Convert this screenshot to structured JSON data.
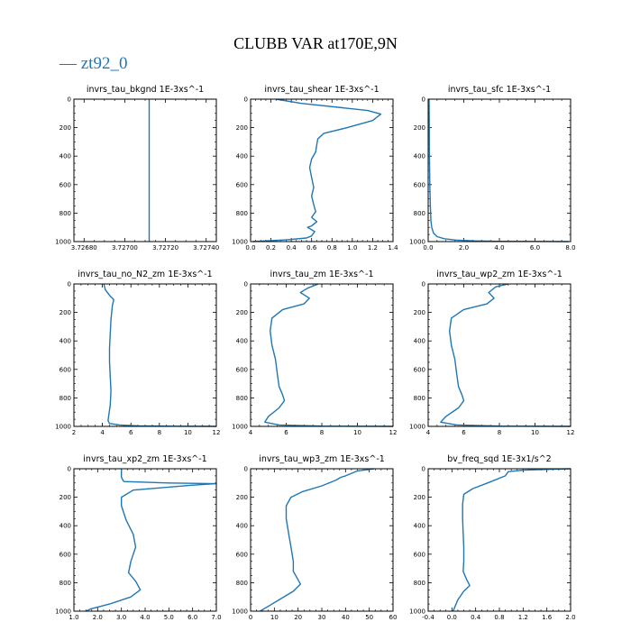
{
  "figure": {
    "title": "CLUBB VAR at170E,9N",
    "legend_label": "zt92_0",
    "line_color": "#1f77b4"
  },
  "chart_data": [
    {
      "type": "line",
      "title": "invrs_tau_bkgnd   1E-3xs^-1",
      "xlim": [
        3.72675,
        3.72745
      ],
      "ylim": [
        0,
        1000
      ],
      "y_inverted": true,
      "xticks": [
        3.7268,
        3.727,
        3.7272,
        3.7274
      ],
      "xtick_labels": [
        "3.72680",
        "3.72700",
        "3.72720",
        "3.72740"
      ],
      "yticks": [
        0,
        200,
        400,
        600,
        800,
        1000
      ],
      "ytick_labels": [
        "0",
        "200",
        "400",
        "600",
        "800",
        "1000"
      ],
      "series": [
        {
          "x": [
            3.72712,
            3.72712,
            3.72712,
            3.72712,
            3.72712,
            3.72712
          ],
          "y": [
            0,
            200,
            400,
            600,
            800,
            1000
          ]
        }
      ]
    },
    {
      "type": "line",
      "title": "invrs_tau_shear   1E-3xs^-1",
      "xlim": [
        0,
        1.4
      ],
      "ylim": [
        0,
        1000
      ],
      "y_inverted": true,
      "xticks": [
        0,
        0.2,
        0.4,
        0.6,
        0.8,
        1.0,
        1.2,
        1.4
      ],
      "xtick_labels": [
        "0.0",
        "0.2",
        "0.4",
        "0.6",
        "0.8",
        "1.0",
        "1.2",
        "1.4"
      ],
      "yticks": [
        0,
        200,
        400,
        600,
        800,
        1000
      ],
      "ytick_labels": [
        "0",
        "200",
        "400",
        "600",
        "800",
        "1000"
      ],
      "series": [
        {
          "x": [
            0.25,
            0.5,
            0.9,
            1.15,
            1.28,
            1.2,
            0.95,
            0.72,
            0.66,
            0.65,
            0.64,
            0.6,
            0.58,
            0.6,
            0.62,
            0.6,
            0.62,
            0.64,
            0.6,
            0.65,
            0.6,
            0.56,
            0.63,
            0.6,
            0.55,
            0.35,
            0.15,
            0.02
          ],
          "y": [
            0,
            30,
            60,
            80,
            105,
            150,
            200,
            240,
            280,
            320,
            370,
            420,
            480,
            550,
            620,
            680,
            740,
            790,
            830,
            860,
            890,
            900,
            930,
            960,
            975,
            988,
            995,
            1000
          ]
        }
      ]
    },
    {
      "type": "line",
      "title": "invrs_tau_sfc   1E-3xs^-1",
      "xlim": [
        0,
        8
      ],
      "ylim": [
        0,
        1000
      ],
      "y_inverted": true,
      "xticks": [
        0,
        2,
        4,
        6,
        8
      ],
      "xtick_labels": [
        "0.0",
        "2.0",
        "4.0",
        "6.0",
        "8.0"
      ],
      "yticks": [
        0,
        200,
        400,
        600,
        800,
        1000
      ],
      "ytick_labels": [
        "0",
        "200",
        "400",
        "600",
        "800",
        "1000"
      ],
      "series": [
        {
          "x": [
            0.05,
            0.06,
            0.07,
            0.09,
            0.12,
            0.15,
            0.2,
            0.3,
            0.5,
            0.9,
            1.6,
            2.6,
            4.0,
            6.0,
            7.9
          ],
          "y": [
            0,
            200,
            400,
            600,
            750,
            850,
            900,
            940,
            965,
            980,
            990,
            995,
            998,
            999,
            1000
          ]
        }
      ]
    },
    {
      "type": "line",
      "title": "invrs_tau_no_N2_zm   1E-3xs^-1",
      "xlim": [
        2,
        12
      ],
      "ylim": [
        0,
        1000
      ],
      "y_inverted": true,
      "xticks": [
        2,
        4,
        6,
        8,
        10,
        12
      ],
      "xtick_labels": [
        "2",
        "4",
        "6",
        "8",
        "10",
        "12"
      ],
      "yticks": [
        0,
        200,
        400,
        600,
        800,
        1000
      ],
      "ytick_labels": [
        "0",
        "200",
        "400",
        "600",
        "800",
        "1000"
      ],
      "series": [
        {
          "x": [
            4.1,
            4.2,
            4.5,
            4.8,
            4.7,
            4.6,
            4.55,
            4.5,
            4.5,
            4.55,
            4.6,
            4.55,
            4.45,
            4.4,
            4.5,
            5.2,
            6.5,
            9.0,
            12.0
          ],
          "y": [
            0,
            40,
            80,
            110,
            150,
            250,
            350,
            450,
            550,
            650,
            750,
            850,
            920,
            960,
            980,
            990,
            996,
            999,
            1000
          ]
        }
      ]
    },
    {
      "type": "line",
      "title": "invrs_tau_zm   1E-3xs^-1",
      "xlim": [
        4,
        12
      ],
      "ylim": [
        0,
        1000
      ],
      "y_inverted": true,
      "xticks": [
        4,
        6,
        8,
        10,
        12
      ],
      "xtick_labels": [
        "4",
        "6",
        "8",
        "10",
        "12"
      ],
      "yticks": [
        0,
        200,
        400,
        600,
        800,
        1000
      ],
      "ytick_labels": [
        "0",
        "200",
        "400",
        "600",
        "800",
        "1000"
      ],
      "series": [
        {
          "x": [
            7.8,
            7.2,
            6.8,
            7.3,
            7.0,
            5.8,
            5.2,
            5.1,
            5.2,
            5.4,
            5.5,
            5.6,
            5.8,
            5.9,
            5.6,
            5.0,
            4.8,
            5.6,
            8.0,
            12.0
          ],
          "y": [
            0,
            30,
            60,
            100,
            140,
            180,
            240,
            330,
            430,
            530,
            630,
            720,
            780,
            820,
            870,
            930,
            970,
            990,
            998,
            1000
          ]
        }
      ]
    },
    {
      "type": "line",
      "title": "invrs_tau_wp2_zm   1E-3xs^-1",
      "xlim": [
        4,
        12
      ],
      "ylim": [
        0,
        1000
      ],
      "y_inverted": true,
      "xticks": [
        4,
        6,
        8,
        10,
        12
      ],
      "xtick_labels": [
        "4",
        "6",
        "8",
        "10",
        "12"
      ],
      "yticks": [
        0,
        200,
        400,
        600,
        800,
        1000
      ],
      "ytick_labels": [
        "0",
        "200",
        "400",
        "600",
        "800",
        "1000"
      ],
      "series": [
        {
          "x": [
            8.5,
            7.8,
            7.4,
            7.7,
            7.3,
            6.0,
            5.3,
            5.2,
            5.3,
            5.5,
            5.6,
            5.7,
            5.9,
            6.0,
            5.7,
            5.0,
            4.7,
            5.6,
            8.0,
            12.0
          ],
          "y": [
            0,
            20,
            60,
            100,
            140,
            180,
            240,
            330,
            430,
            530,
            630,
            720,
            780,
            820,
            870,
            930,
            970,
            990,
            998,
            1000
          ]
        }
      ]
    },
    {
      "type": "line",
      "title": "invrs_tau_xp2_zm   1E-3xs^-1",
      "xlim": [
        1,
        7
      ],
      "ylim": [
        0,
        1000
      ],
      "y_inverted": true,
      "xticks": [
        1,
        2,
        3,
        4,
        5,
        6,
        7
      ],
      "xtick_labels": [
        "1.0",
        "2.0",
        "3.0",
        "4.0",
        "5.0",
        "6.0",
        "7.0"
      ],
      "yticks": [
        0,
        200,
        400,
        600,
        800,
        1000
      ],
      "ytick_labels": [
        "0",
        "200",
        "400",
        "600",
        "800",
        "1000"
      ],
      "series": [
        {
          "x": [
            3.0,
            3.0,
            3.1,
            5.0,
            7.0,
            6.0,
            3.5,
            3.0,
            3.0,
            3.2,
            3.5,
            3.6,
            3.4,
            3.3,
            3.6,
            3.8,
            3.4,
            2.5,
            1.7,
            1.5
          ],
          "y": [
            0,
            60,
            90,
            100,
            105,
            115,
            150,
            200,
            260,
            360,
            460,
            550,
            650,
            730,
            790,
            850,
            900,
            950,
            985,
            1000
          ]
        }
      ]
    },
    {
      "type": "line",
      "title": "invrs_tau_wp3_zm   1E-3xs^-1",
      "xlim": [
        0,
        60
      ],
      "ylim": [
        0,
        1000
      ],
      "y_inverted": true,
      "xticks": [
        0,
        10,
        20,
        30,
        40,
        50,
        60
      ],
      "xtick_labels": [
        "0",
        "10",
        "20",
        "30",
        "40",
        "50",
        "60"
      ],
      "yticks": [
        0,
        200,
        400,
        600,
        800,
        1000
      ],
      "ytick_labels": [
        "0",
        "200",
        "400",
        "600",
        "800",
        "1000"
      ],
      "series": [
        {
          "x": [
            52,
            50,
            45,
            40,
            38,
            36,
            30,
            22,
            17,
            15,
            15,
            16,
            17,
            18,
            18,
            20,
            21,
            18,
            12,
            8,
            5,
            4
          ],
          "y": [
            0,
            5,
            15,
            50,
            60,
            80,
            120,
            160,
            200,
            260,
            350,
            450,
            550,
            650,
            720,
            780,
            810,
            860,
            920,
            960,
            990,
            1000
          ]
        }
      ]
    },
    {
      "type": "line",
      "title": "bv_freq_sqd   1E-3x1/s^2",
      "xlim": [
        -0.4,
        2.0
      ],
      "ylim": [
        0,
        1000
      ],
      "y_inverted": true,
      "xticks": [
        -0.4,
        0,
        0.4,
        0.8,
        1.2,
        1.6,
        2.0
      ],
      "xtick_labels": [
        "-0.4",
        "0.0",
        "0.4",
        "0.8",
        "1.2",
        "1.6",
        "2.0"
      ],
      "yticks": [
        0,
        200,
        400,
        600,
        800,
        1000
      ],
      "ytick_labels": [
        "0",
        "200",
        "400",
        "600",
        "800",
        "1000"
      ],
      "series": [
        {
          "x": [
            2.0,
            1.7,
            1.2,
            0.95,
            0.9,
            0.6,
            0.35,
            0.2,
            0.18,
            0.18,
            0.19,
            0.2,
            0.2,
            0.19,
            0.25,
            0.3,
            0.2,
            0.1,
            0.05,
            0.02
          ],
          "y": [
            0,
            3,
            10,
            20,
            50,
            100,
            140,
            180,
            250,
            350,
            450,
            550,
            650,
            720,
            780,
            820,
            860,
            920,
            970,
            1000
          ]
        }
      ]
    }
  ]
}
